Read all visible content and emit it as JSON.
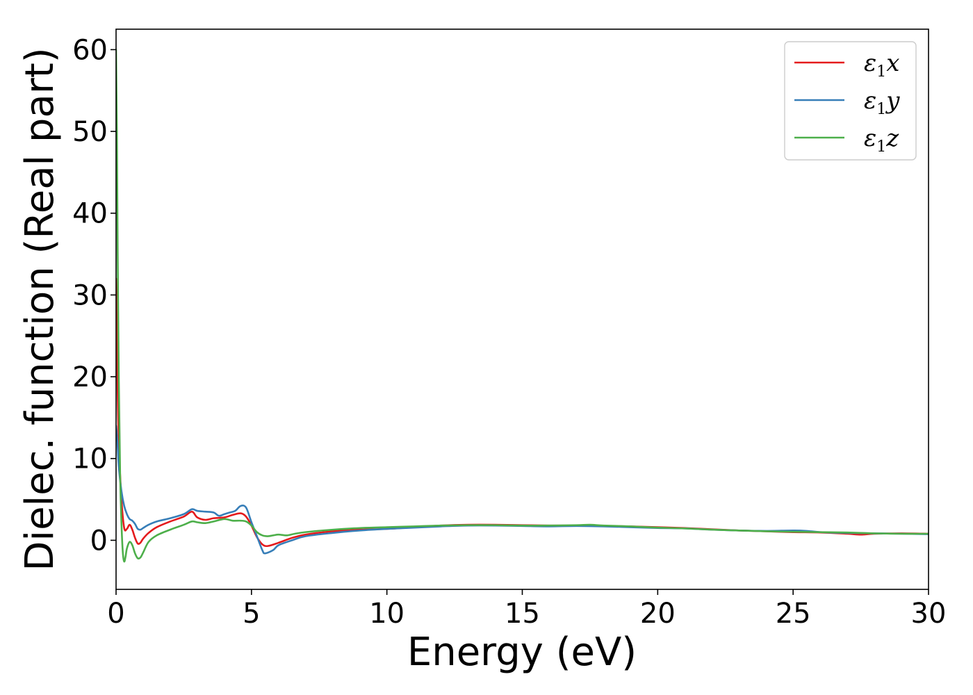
{
  "chart_data": {
    "type": "line",
    "title": "",
    "xlabel": "Energy (eV)",
    "ylabel": "Dielec. function (Real part)",
    "xlim": [
      0,
      30
    ],
    "ylim": [
      -6,
      62.5
    ],
    "x_ticks": [
      "0",
      "5",
      "10",
      "15",
      "20",
      "25",
      "30"
    ],
    "y_ticks": [
      "0",
      "10",
      "20",
      "30",
      "40",
      "50",
      "60"
    ],
    "grid": false,
    "legend_position": "top-right",
    "series": [
      {
        "name": "ε1x",
        "legend": {
          "base": "ε",
          "sub": "1",
          "comp": "x"
        },
        "color": "#e41a1c",
        "points": [
          [
            0.0,
            32.0
          ],
          [
            0.05,
            20.0
          ],
          [
            0.1,
            12.0
          ],
          [
            0.2,
            5.0
          ],
          [
            0.3,
            1.5
          ],
          [
            0.4,
            1.4
          ],
          [
            0.5,
            1.9
          ],
          [
            0.6,
            1.3
          ],
          [
            0.7,
            0.3
          ],
          [
            0.8,
            -0.4
          ],
          [
            0.9,
            -0.3
          ],
          [
            1.0,
            0.2
          ],
          [
            1.2,
            0.9
          ],
          [
            1.5,
            1.6
          ],
          [
            2.0,
            2.3
          ],
          [
            2.5,
            2.9
          ],
          [
            2.8,
            3.5
          ],
          [
            3.0,
            2.8
          ],
          [
            3.3,
            2.5
          ],
          [
            3.6,
            2.7
          ],
          [
            4.0,
            2.8
          ],
          [
            4.3,
            3.1
          ],
          [
            4.6,
            3.3
          ],
          [
            4.8,
            2.9
          ],
          [
            5.0,
            1.8
          ],
          [
            5.2,
            0.4
          ],
          [
            5.4,
            -0.5
          ],
          [
            5.6,
            -0.7
          ],
          [
            6.0,
            -0.3
          ],
          [
            6.5,
            0.3
          ],
          [
            7.0,
            0.7
          ],
          [
            8.0,
            1.1
          ],
          [
            9.0,
            1.3
          ],
          [
            10.0,
            1.4
          ],
          [
            11.0,
            1.6
          ],
          [
            12.0,
            1.8
          ],
          [
            13.0,
            1.9
          ],
          [
            14.0,
            1.9
          ],
          [
            15.0,
            1.85
          ],
          [
            16.0,
            1.8
          ],
          [
            17.0,
            1.8
          ],
          [
            18.0,
            1.75
          ],
          [
            19.0,
            1.7
          ],
          [
            20.0,
            1.6
          ],
          [
            21.0,
            1.5
          ],
          [
            22.0,
            1.35
          ],
          [
            23.0,
            1.2
          ],
          [
            24.0,
            1.1
          ],
          [
            25.0,
            1.0
          ],
          [
            26.0,
            0.95
          ],
          [
            27.0,
            0.8
          ],
          [
            27.5,
            0.7
          ],
          [
            28.0,
            0.8
          ],
          [
            29.0,
            0.85
          ],
          [
            30.0,
            0.8
          ]
        ]
      },
      {
        "name": "ε1y",
        "legend": {
          "base": "ε",
          "sub": "1",
          "comp": "y"
        },
        "color": "#377eb8",
        "points": [
          [
            0.0,
            14.0
          ],
          [
            0.05,
            12.0
          ],
          [
            0.1,
            9.0
          ],
          [
            0.2,
            6.0
          ],
          [
            0.3,
            4.2
          ],
          [
            0.4,
            3.2
          ],
          [
            0.5,
            2.6
          ],
          [
            0.6,
            2.4
          ],
          [
            0.7,
            2.0
          ],
          [
            0.8,
            1.4
          ],
          [
            0.9,
            1.3
          ],
          [
            1.0,
            1.5
          ],
          [
            1.2,
            1.9
          ],
          [
            1.5,
            2.3
          ],
          [
            2.0,
            2.7
          ],
          [
            2.5,
            3.2
          ],
          [
            2.8,
            3.8
          ],
          [
            3.0,
            3.6
          ],
          [
            3.3,
            3.5
          ],
          [
            3.6,
            3.4
          ],
          [
            3.8,
            3.0
          ],
          [
            4.0,
            3.2
          ],
          [
            4.2,
            3.4
          ],
          [
            4.4,
            3.6
          ],
          [
            4.6,
            4.2
          ],
          [
            4.8,
            4.0
          ],
          [
            5.0,
            2.2
          ],
          [
            5.2,
            0.5
          ],
          [
            5.4,
            -1.2
          ],
          [
            5.5,
            -1.6
          ],
          [
            5.8,
            -1.2
          ],
          [
            6.0,
            -0.6
          ],
          [
            6.5,
            0.0
          ],
          [
            7.0,
            0.5
          ],
          [
            8.0,
            0.9
          ],
          [
            9.0,
            1.2
          ],
          [
            10.0,
            1.4
          ],
          [
            11.0,
            1.55
          ],
          [
            12.0,
            1.7
          ],
          [
            13.0,
            1.8
          ],
          [
            14.0,
            1.8
          ],
          [
            15.0,
            1.75
          ],
          [
            16.0,
            1.7
          ],
          [
            17.0,
            1.75
          ],
          [
            18.0,
            1.7
          ],
          [
            19.0,
            1.6
          ],
          [
            20.0,
            1.5
          ],
          [
            21.0,
            1.45
          ],
          [
            22.0,
            1.3
          ],
          [
            23.0,
            1.2
          ],
          [
            24.0,
            1.15
          ],
          [
            25.0,
            1.2
          ],
          [
            25.5,
            1.15
          ],
          [
            26.0,
            1.0
          ],
          [
            27.0,
            0.9
          ],
          [
            28.0,
            0.85
          ],
          [
            29.0,
            0.8
          ],
          [
            30.0,
            0.75
          ]
        ]
      },
      {
        "name": "ε1z",
        "legend": {
          "base": "ε",
          "sub": "1",
          "comp": "z"
        },
        "color": "#4daf4a",
        "points": [
          [
            0.0,
            60.0
          ],
          [
            0.03,
            50.0
          ],
          [
            0.06,
            35.0
          ],
          [
            0.1,
            20.0
          ],
          [
            0.15,
            8.0
          ],
          [
            0.2,
            2.0
          ],
          [
            0.25,
            -1.5
          ],
          [
            0.3,
            -2.6
          ],
          [
            0.35,
            -2.0
          ],
          [
            0.4,
            -1.0
          ],
          [
            0.5,
            -0.2
          ],
          [
            0.6,
            -0.6
          ],
          [
            0.7,
            -1.6
          ],
          [
            0.8,
            -2.2
          ],
          [
            0.9,
            -2.1
          ],
          [
            1.0,
            -1.5
          ],
          [
            1.2,
            -0.2
          ],
          [
            1.5,
            0.6
          ],
          [
            2.0,
            1.3
          ],
          [
            2.5,
            1.9
          ],
          [
            2.8,
            2.3
          ],
          [
            3.0,
            2.2
          ],
          [
            3.3,
            2.1
          ],
          [
            3.6,
            2.3
          ],
          [
            4.0,
            2.6
          ],
          [
            4.3,
            2.4
          ],
          [
            4.6,
            2.4
          ],
          [
            4.8,
            2.3
          ],
          [
            5.0,
            1.8
          ],
          [
            5.2,
            1.0
          ],
          [
            5.4,
            0.6
          ],
          [
            5.6,
            0.5
          ],
          [
            5.8,
            0.6
          ],
          [
            6.0,
            0.7
          ],
          [
            6.3,
            0.6
          ],
          [
            6.6,
            0.8
          ],
          [
            7.0,
            1.0
          ],
          [
            8.0,
            1.3
          ],
          [
            9.0,
            1.5
          ],
          [
            10.0,
            1.6
          ],
          [
            11.0,
            1.7
          ],
          [
            12.0,
            1.8
          ],
          [
            13.0,
            1.85
          ],
          [
            14.0,
            1.85
          ],
          [
            15.0,
            1.8
          ],
          [
            16.0,
            1.8
          ],
          [
            17.0,
            1.85
          ],
          [
            17.5,
            1.9
          ],
          [
            18.0,
            1.8
          ],
          [
            19.0,
            1.7
          ],
          [
            20.0,
            1.55
          ],
          [
            21.0,
            1.45
          ],
          [
            22.0,
            1.3
          ],
          [
            23.0,
            1.2
          ],
          [
            24.0,
            1.1
          ],
          [
            25.0,
            1.05
          ],
          [
            26.0,
            1.0
          ],
          [
            27.0,
            0.95
          ],
          [
            28.0,
            0.85
          ],
          [
            29.0,
            0.8
          ],
          [
            30.0,
            0.8
          ]
        ]
      }
    ]
  }
}
